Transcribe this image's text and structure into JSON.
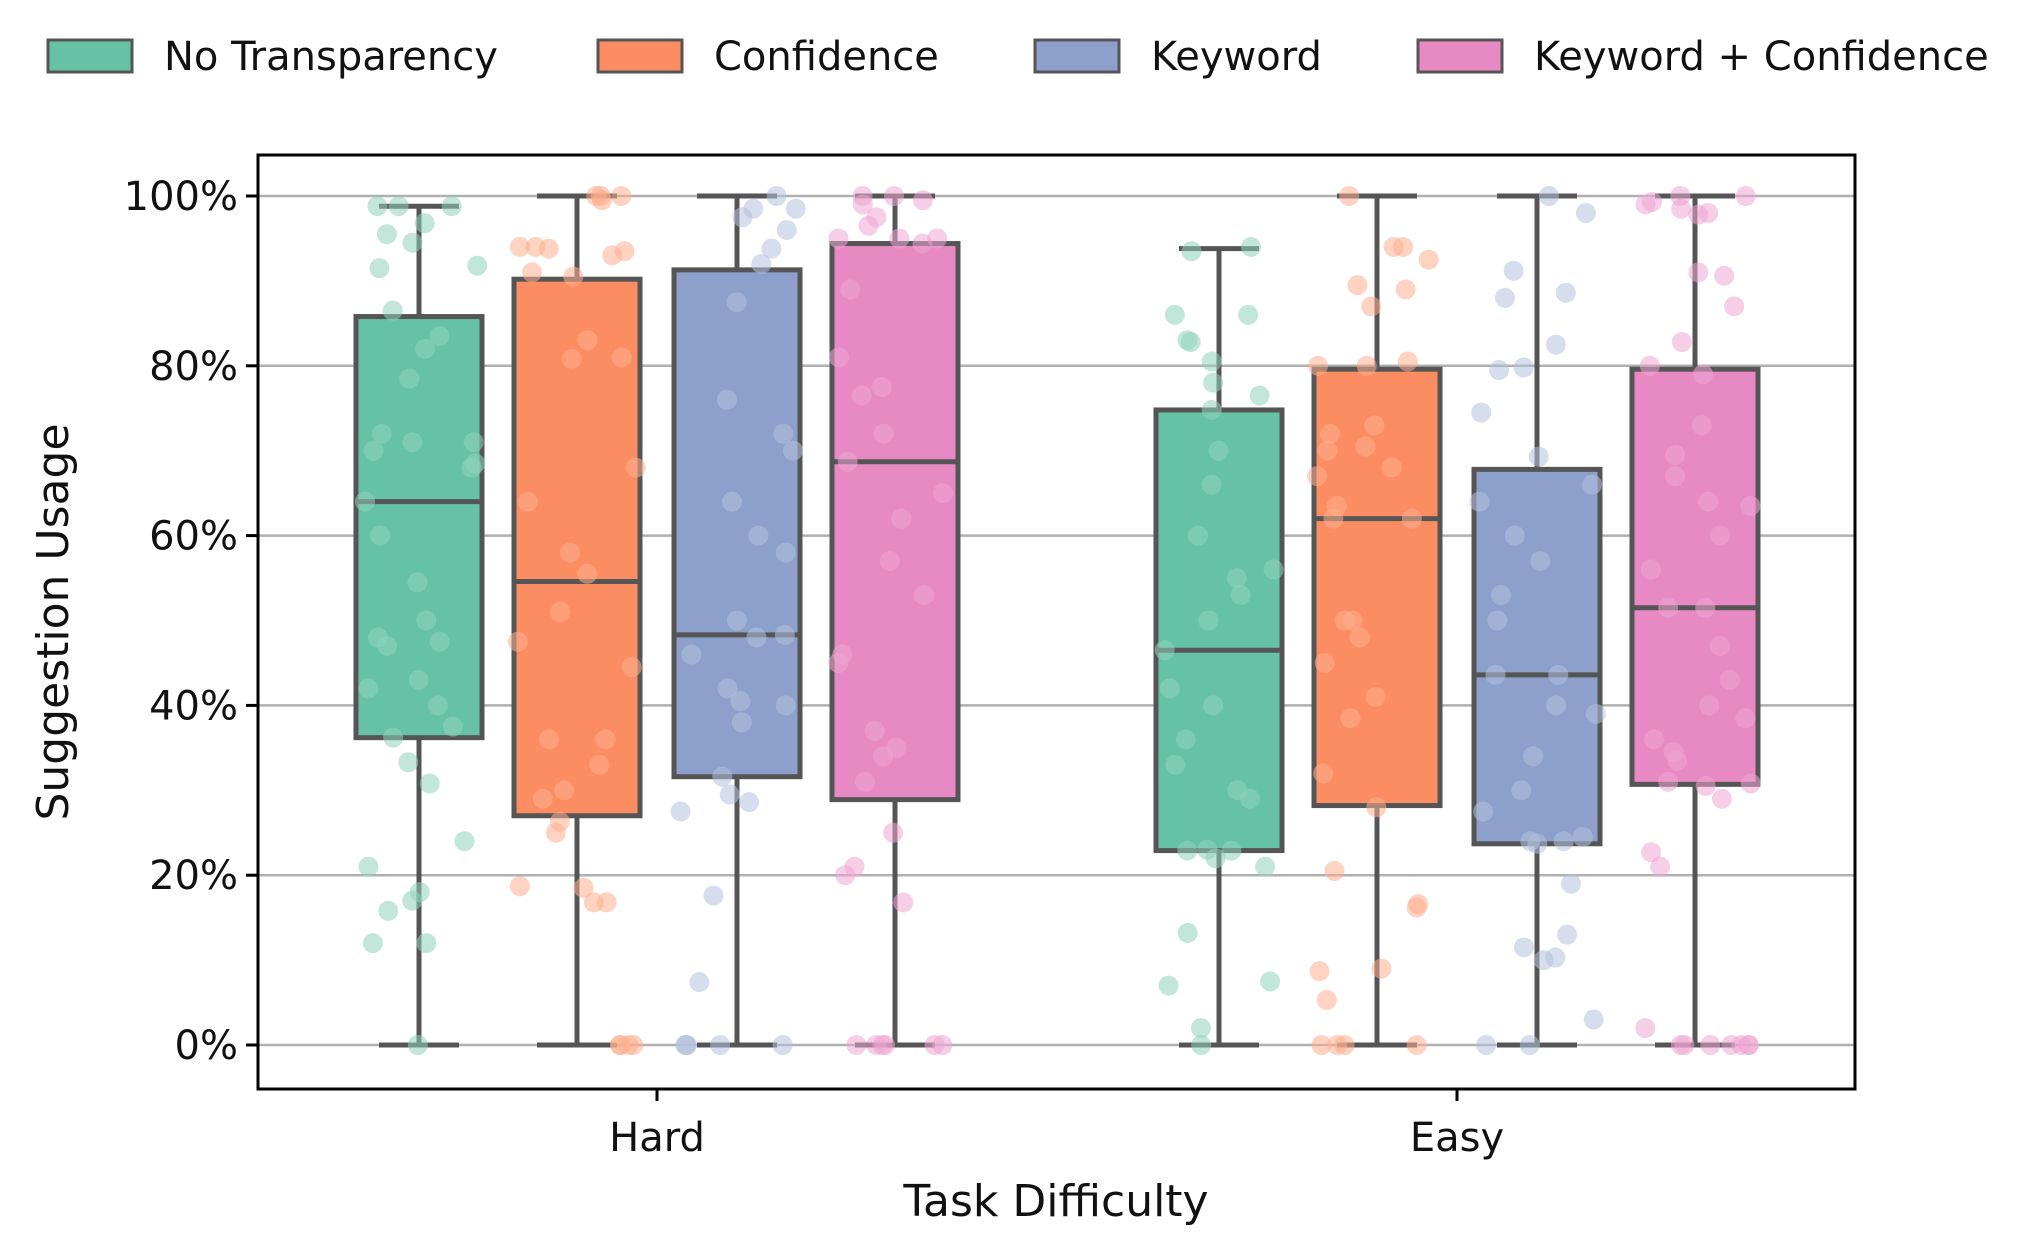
{
  "chart_data": {
    "type": "box",
    "title": "",
    "xlabel": "Task Difficulty",
    "ylabel": "Suggestion Usage",
    "ylim": [
      -5,
      105
    ],
    "yticks": [
      0,
      20,
      40,
      60,
      80,
      100
    ],
    "ytick_labels": [
      "0%",
      "20%",
      "40%",
      "60%",
      "80%",
      "100%"
    ],
    "grid": "y",
    "legend_position": "top",
    "categories": [
      "Hard",
      "Easy"
    ],
    "series": [
      {
        "name": "No Transparency",
        "color": "#66c2a5",
        "point_color": "#8fd3bc",
        "boxes": [
          {
            "category": "Hard",
            "whisker_low": 0,
            "q1": 36.2,
            "median": 64,
            "q3": 85.8,
            "whisker_high": 98.8,
            "points": [
              0,
              12,
              12,
              15.8,
              17,
              18,
              21,
              24,
              30.8,
              33.3,
              36.2,
              37.5,
              40,
              42,
              43,
              47,
              47.5,
              48,
              50,
              54.5,
              60,
              64,
              68,
              68.5,
              70,
              71,
              71,
              72,
              78.5,
              82,
              83.5,
              86.5,
              91.5,
              91.8,
              94.5,
              95.5,
              96.8,
              98.8,
              98.8,
              98.8
            ]
          },
          {
            "category": "Easy",
            "whisker_low": 0,
            "q1": 22.9,
            "median": 46.5,
            "q3": 74.8,
            "whisker_high": 93.8,
            "points": [
              0,
              2,
              7,
              7.5,
              13.2,
              21,
              22,
              22.9,
              22.9,
              23,
              29,
              30,
              33,
              36,
              40,
              42,
              46.5,
              50,
              53,
              55,
              56,
              60,
              66,
              70,
              74.8,
              76.5,
              78,
              80.5,
              82.8,
              83,
              86,
              86,
              93.5,
              94
            ]
          }
        ]
      },
      {
        "name": "Confidence",
        "color": "#fc8d62",
        "point_color": "#fdae8e",
        "boxes": [
          {
            "category": "Hard",
            "whisker_low": 0,
            "q1": 27,
            "median": 54.6,
            "q3": 90.2,
            "whisker_high": 100,
            "points": [
              0,
              0,
              0,
              0,
              16.8,
              16.8,
              18.5,
              18.7,
              25,
              26.3,
              29,
              30,
              33,
              36,
              36,
              44.5,
              47.5,
              51,
              55.5,
              58,
              64,
              68,
              80.8,
              81,
              83,
              90.5,
              91,
              93,
              93.5,
              93.8,
              94,
              94,
              99.5,
              100,
              100,
              100
            ]
          },
          {
            "category": "Easy",
            "whisker_low": 0,
            "q1": 28.2,
            "median": 62,
            "q3": 79.6,
            "whisker_high": 100,
            "points": [
              0,
              0,
              0,
              0,
              5.3,
              8.7,
              9,
              16.2,
              16.6,
              20.5,
              28,
              32,
              38.5,
              41,
              45,
              48,
              50,
              50,
              62,
              62,
              63.5,
              67,
              68,
              70,
              70.5,
              72,
              73,
              80,
              80,
              80.5,
              87,
              89,
              89.5,
              92.5,
              94,
              94,
              100
            ]
          }
        ]
      },
      {
        "name": "Keyword",
        "color": "#8da0cb",
        "point_color": "#b5c1de",
        "boxes": [
          {
            "category": "Hard",
            "whisker_low": 0,
            "q1": 31.6,
            "median": 48.3,
            "q3": 91.3,
            "whisker_high": 100,
            "points": [
              0,
              0,
              0,
              0,
              0,
              7.4,
              17.6,
              27.5,
              28.6,
              29.5,
              31.6,
              38,
              40,
              40.5,
              42,
              46,
              48.3,
              48,
              50,
              58,
              60,
              64,
              70,
              72,
              76,
              87.5,
              92,
              93.8,
              96,
              97.5,
              98.5,
              98.5,
              100
            ]
          },
          {
            "category": "Easy",
            "whisker_low": 0,
            "q1": 23.7,
            "median": 43.6,
            "q3": 67.8,
            "whisker_high": 100,
            "points": [
              0,
              0,
              3,
              10,
              10.3,
              11.5,
              13,
              19,
              23.7,
              24,
              24.5,
              24,
              27.5,
              30,
              34,
              39,
              40,
              43.6,
              43.6,
              50,
              53,
              57,
              60,
              64,
              66,
              69.3,
              74.5,
              79.8,
              79.5,
              82.5,
              88,
              88.6,
              91.2,
              98,
              100
            ]
          }
        ]
      },
      {
        "name": "Keyword + Confidence",
        "color": "#e78ac3",
        "point_color": "#eea6d3",
        "boxes": [
          {
            "category": "Hard",
            "whisker_low": 0,
            "q1": 28.9,
            "median": 68.7,
            "q3": 94.4,
            "whisker_high": 100,
            "points": [
              0,
              0,
              0,
              0,
              0,
              0,
              16.8,
              20,
              21,
              25,
              31,
              34,
              35,
              37,
              45,
              46,
              53,
              57,
              62,
              65,
              68.7,
              72,
              76.5,
              77.5,
              81,
              89,
              94.4,
              95,
              95,
              95,
              96.5,
              97.5,
              99,
              99.5,
              100,
              100
            ]
          },
          {
            "category": "Easy",
            "whisker_low": 0,
            "q1": 30.7,
            "median": 51.5,
            "q3": 79.6,
            "whisker_high": 100,
            "points": [
              0,
              0,
              0,
              0,
              0,
              0,
              0,
              2,
              21,
              22.7,
              29,
              30.5,
              30.8,
              31,
              33.5,
              34.5,
              36,
              38.5,
              40,
              43,
              47,
              51.5,
              51.5,
              56,
              60,
              63.5,
              64,
              67,
              69.5,
              73,
              79,
              80,
              82.8,
              87,
              90.6,
              91,
              97.8,
              98,
              98.5,
              99,
              99.3,
              100,
              100
            ]
          }
        ]
      }
    ]
  }
}
